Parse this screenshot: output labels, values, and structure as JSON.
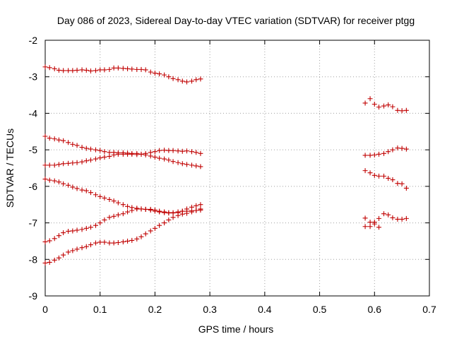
{
  "chart_data": {
    "type": "scatter",
    "title": "Day 086 of 2023, Sidereal Day-to-day VTEC variation (SDTVAR) for receiver ptgg",
    "xlabel": "GPS time / hours",
    "ylabel": "SDTVAR / TECUs",
    "xlim": [
      0,
      0.7
    ],
    "ylim": [
      -9,
      -2
    ],
    "xticks": [
      0,
      0.1,
      0.2,
      0.3,
      0.4,
      0.5,
      0.6,
      0.7
    ],
    "xtick_labels": [
      "0",
      "0.1",
      "0.2",
      "0.3",
      "0.4",
      "0.5",
      "0.6",
      "0.7"
    ],
    "yticks": [
      -9,
      -8,
      -7,
      -6,
      -5,
      -4,
      -3,
      -2
    ],
    "ytick_labels": [
      "-9",
      "-8",
      "-7",
      "-6",
      "-5",
      "-4",
      "-3",
      "-2"
    ],
    "grid": true,
    "marker": "+",
    "marker_color": "#c00000",
    "series": [
      {
        "name": "track-1",
        "x": [
          0,
          0.008,
          0.017,
          0.025,
          0.033,
          0.042,
          0.05,
          0.058,
          0.067,
          0.075,
          0.083,
          0.092,
          0.1,
          0.108,
          0.117,
          0.125,
          0.133,
          0.142,
          0.15,
          0.158,
          0.167,
          0.175,
          0.183,
          0.192,
          0.2,
          0.208,
          0.217,
          0.225,
          0.233,
          0.242,
          0.25,
          0.258,
          0.267,
          0.275,
          0.283
        ],
        "y": [
          -2.73,
          -2.75,
          -2.78,
          -2.82,
          -2.83,
          -2.83,
          -2.83,
          -2.82,
          -2.81,
          -2.82,
          -2.84,
          -2.83,
          -2.81,
          -2.81,
          -2.8,
          -2.76,
          -2.76,
          -2.77,
          -2.78,
          -2.79,
          -2.8,
          -2.8,
          -2.81,
          -2.87,
          -2.9,
          -2.92,
          -2.95,
          -3.0,
          -3.05,
          -3.08,
          -3.12,
          -3.14,
          -3.12,
          -3.08,
          -3.06
        ]
      },
      {
        "name": "track-2",
        "x": [
          0,
          0.008,
          0.017,
          0.025,
          0.033,
          0.042,
          0.05,
          0.058,
          0.067,
          0.075,
          0.083,
          0.092,
          0.1,
          0.108,
          0.117,
          0.125,
          0.133,
          0.142,
          0.15,
          0.158,
          0.167,
          0.175,
          0.183,
          0.192,
          0.2,
          0.208,
          0.217,
          0.225,
          0.233,
          0.242,
          0.25,
          0.258,
          0.267,
          0.275,
          0.283
        ],
        "y": [
          -4.63,
          -4.68,
          -4.7,
          -4.73,
          -4.75,
          -4.8,
          -4.85,
          -4.88,
          -4.93,
          -4.96,
          -4.98,
          -5.0,
          -5.02,
          -5.05,
          -5.07,
          -5.07,
          -5.08,
          -5.08,
          -5.09,
          -5.1,
          -5.1,
          -5.12,
          -5.14,
          -5.17,
          -5.2,
          -5.23,
          -5.25,
          -5.28,
          -5.32,
          -5.35,
          -5.38,
          -5.4,
          -5.42,
          -5.44,
          -5.46
        ]
      },
      {
        "name": "track-3",
        "x": [
          0,
          0.008,
          0.017,
          0.025,
          0.033,
          0.042,
          0.05,
          0.058,
          0.067,
          0.075,
          0.083,
          0.092,
          0.1,
          0.108,
          0.117,
          0.125,
          0.133,
          0.142,
          0.15,
          0.158,
          0.167,
          0.175,
          0.183,
          0.192,
          0.2,
          0.208,
          0.217,
          0.225,
          0.233,
          0.242,
          0.25,
          0.258,
          0.267,
          0.275,
          0.283
        ],
        "y": [
          -5.42,
          -5.42,
          -5.42,
          -5.4,
          -5.38,
          -5.37,
          -5.36,
          -5.35,
          -5.33,
          -5.3,
          -5.28,
          -5.25,
          -5.22,
          -5.2,
          -5.18,
          -5.14,
          -5.12,
          -5.12,
          -5.12,
          -5.12,
          -5.13,
          -5.12,
          -5.1,
          -5.07,
          -5.05,
          -5.02,
          -5.01,
          -5.02,
          -5.02,
          -5.03,
          -5.04,
          -5.03,
          -5.05,
          -5.07,
          -5.1
        ]
      },
      {
        "name": "track-4",
        "x": [
          0,
          0.008,
          0.017,
          0.025,
          0.033,
          0.042,
          0.05,
          0.058,
          0.067,
          0.075,
          0.083,
          0.092,
          0.1,
          0.108,
          0.117,
          0.125,
          0.133,
          0.142,
          0.15,
          0.158,
          0.167,
          0.175,
          0.183,
          0.192,
          0.2,
          0.208,
          0.217,
          0.225,
          0.233,
          0.242,
          0.25,
          0.258,
          0.267,
          0.275,
          0.283
        ],
        "y": [
          -5.8,
          -5.83,
          -5.85,
          -5.88,
          -5.93,
          -5.97,
          -6.02,
          -6.06,
          -6.1,
          -6.12,
          -6.17,
          -6.23,
          -6.28,
          -6.32,
          -6.36,
          -6.4,
          -6.45,
          -6.5,
          -6.55,
          -6.58,
          -6.6,
          -6.62,
          -6.63,
          -6.65,
          -6.68,
          -6.7,
          -6.72,
          -6.73,
          -6.72,
          -6.7,
          -6.68,
          -6.68,
          -6.67,
          -6.66,
          -6.65
        ]
      },
      {
        "name": "track-5",
        "x": [
          0,
          0.008,
          0.017,
          0.025,
          0.033,
          0.042,
          0.05,
          0.058,
          0.067,
          0.075,
          0.083,
          0.092,
          0.1,
          0.108,
          0.117,
          0.125,
          0.133,
          0.142,
          0.15,
          0.158,
          0.167,
          0.175,
          0.183,
          0.192,
          0.2,
          0.208,
          0.217,
          0.225,
          0.233,
          0.242,
          0.25,
          0.258,
          0.267,
          0.275,
          0.283
        ],
        "y": [
          -7.52,
          -7.49,
          -7.43,
          -7.35,
          -7.27,
          -7.23,
          -7.22,
          -7.2,
          -7.18,
          -7.15,
          -7.12,
          -7.07,
          -7.0,
          -6.92,
          -6.85,
          -6.82,
          -6.78,
          -6.75,
          -6.7,
          -6.66,
          -6.62,
          -6.62,
          -6.63,
          -6.63,
          -6.65,
          -6.68,
          -6.7,
          -6.72,
          -6.73,
          -6.72,
          -6.68,
          -6.62,
          -6.57,
          -6.53,
          -6.5
        ]
      },
      {
        "name": "track-6",
        "x": [
          0,
          0.008,
          0.017,
          0.025,
          0.033,
          0.042,
          0.05,
          0.058,
          0.067,
          0.075,
          0.083,
          0.092,
          0.1,
          0.108,
          0.117,
          0.125,
          0.133,
          0.142,
          0.15,
          0.158,
          0.167,
          0.175,
          0.183,
          0.192,
          0.2,
          0.208,
          0.217,
          0.225,
          0.233,
          0.242,
          0.25,
          0.258,
          0.267,
          0.275,
          0.283
        ],
        "y": [
          -8.1,
          -8.08,
          -8.02,
          -7.96,
          -7.88,
          -7.8,
          -7.76,
          -7.72,
          -7.68,
          -7.65,
          -7.6,
          -7.55,
          -7.53,
          -7.53,
          -7.55,
          -7.55,
          -7.54,
          -7.52,
          -7.5,
          -7.48,
          -7.44,
          -7.38,
          -7.3,
          -7.22,
          -7.15,
          -7.07,
          -7.0,
          -6.92,
          -6.85,
          -6.8,
          -6.76,
          -6.74,
          -6.7,
          -6.66,
          -6.62
        ]
      },
      {
        "name": "track-7",
        "x": [
          0.583,
          0.592,
          0.6,
          0.608,
          0.617,
          0.625,
          0.633,
          0.642,
          0.65,
          0.658
        ],
        "y": [
          -3.72,
          -3.6,
          -3.75,
          -3.83,
          -3.8,
          -3.77,
          -3.82,
          -3.92,
          -3.93,
          -3.92
        ]
      },
      {
        "name": "track-8",
        "x": [
          0.583,
          0.592,
          0.6,
          0.608,
          0.617,
          0.625,
          0.633,
          0.642,
          0.65,
          0.658
        ],
        "y": [
          -5.15,
          -5.15,
          -5.14,
          -5.12,
          -5.1,
          -5.05,
          -5.0,
          -4.95,
          -4.96,
          -4.98
        ]
      },
      {
        "name": "track-9",
        "x": [
          0.583,
          0.592,
          0.6,
          0.608,
          0.617,
          0.625,
          0.633,
          0.642,
          0.65,
          0.658
        ],
        "y": [
          -5.57,
          -5.63,
          -5.7,
          -5.72,
          -5.72,
          -5.78,
          -5.82,
          -5.92,
          -5.93,
          -6.05
        ]
      },
      {
        "name": "track-10",
        "x": [
          0.583,
          0.592,
          0.6,
          0.608,
          0.617,
          0.625,
          0.633,
          0.642,
          0.65,
          0.658
        ],
        "y": [
          -6.87,
          -6.98,
          -7.03,
          -6.88,
          -6.75,
          -6.78,
          -6.86,
          -6.9,
          -6.9,
          -6.88
        ]
      },
      {
        "name": "track-11",
        "x": [
          0.583,
          0.592,
          0.6,
          0.608
        ],
        "y": [
          -7.1,
          -7.1,
          -6.98,
          -7.12
        ]
      }
    ]
  }
}
